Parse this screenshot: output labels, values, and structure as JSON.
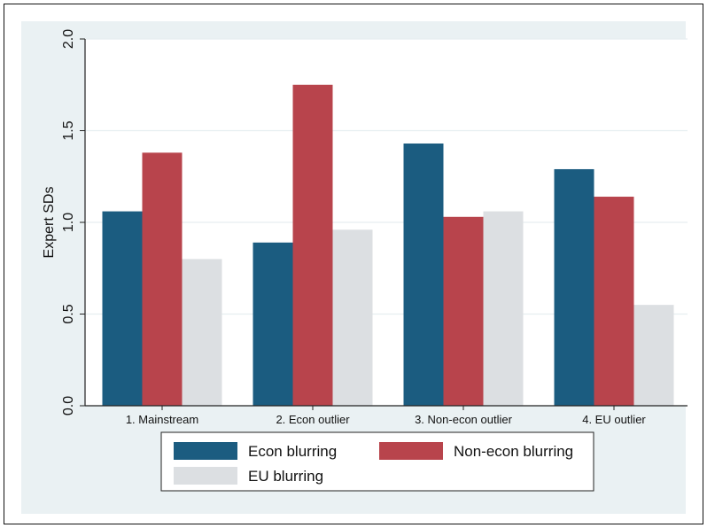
{
  "chart_data": {
    "type": "bar",
    "title": "",
    "xlabel": "",
    "ylabel": "Expert SDs",
    "ylim": [
      0,
      2.0
    ],
    "yticks": [
      0.0,
      0.5,
      1.0,
      1.5,
      2.0
    ],
    "ytick_labels": [
      "0.0",
      "0.5",
      "1.0",
      "1.5",
      "2.0"
    ],
    "grid": true,
    "legend_position": "bottom",
    "categories": [
      "1. Mainstream",
      "2. Econ outlier",
      "3. Non-econ outlier",
      "4. EU outlier"
    ],
    "series": [
      {
        "name": "Econ blurring",
        "color": "#1b5c80",
        "values": [
          1.06,
          0.89,
          1.43,
          1.29
        ]
      },
      {
        "name": "Non-econ blurring",
        "color": "#b8444c",
        "values": [
          1.38,
          1.75,
          1.03,
          1.14
        ]
      },
      {
        "name": "EU blurring",
        "color": "#dcdfe2",
        "values": [
          0.8,
          0.96,
          1.06,
          0.55
        ]
      }
    ]
  },
  "colors": {
    "plot_background": "#eaf1f3",
    "plot_area": "#ffffff",
    "gridline": "#e6eef0",
    "axis": "#222222"
  }
}
